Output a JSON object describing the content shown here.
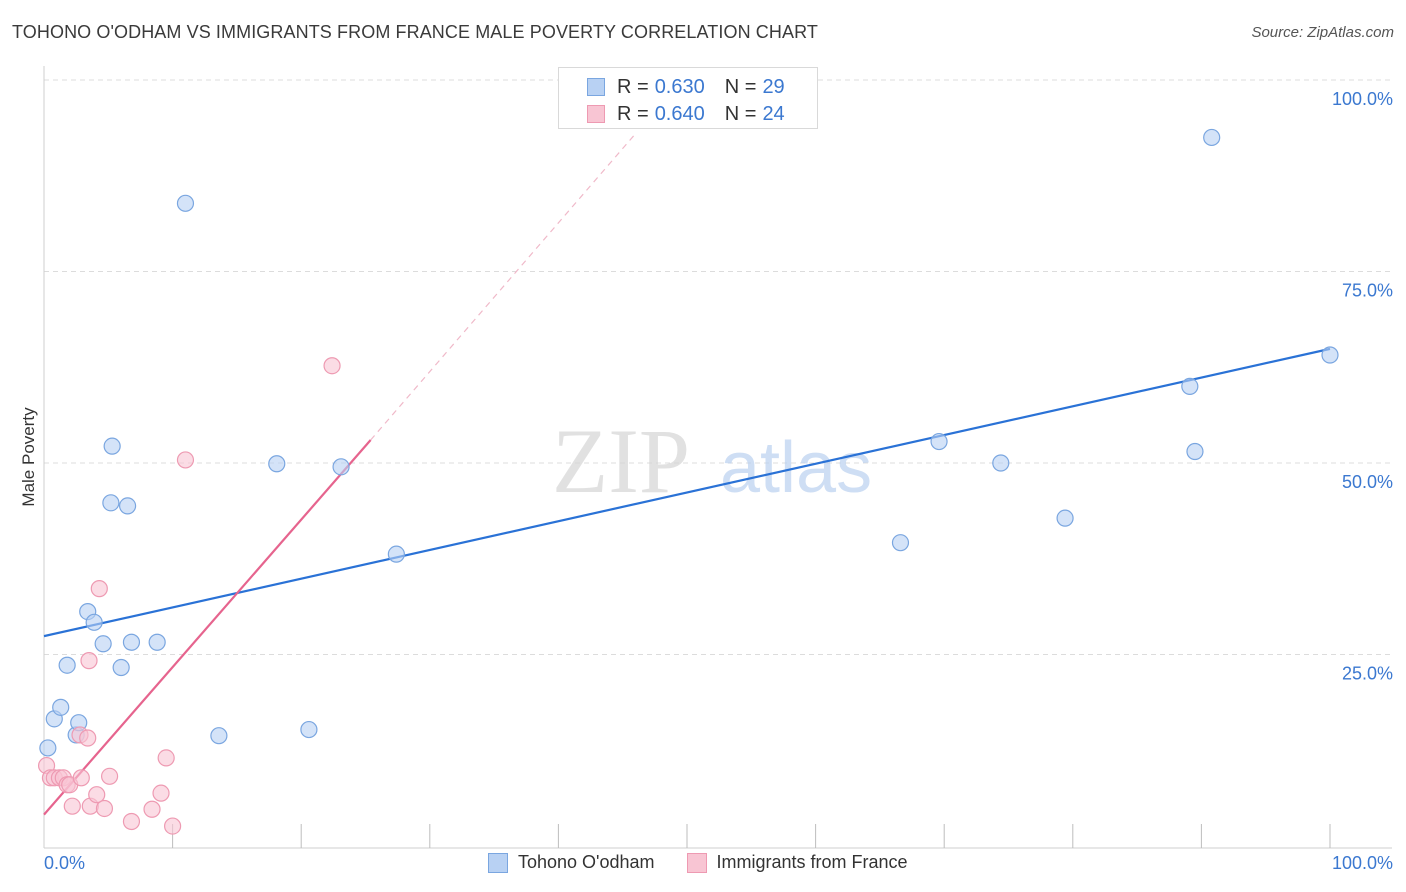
{
  "header": {
    "title": "TOHONO O'ODHAM VS IMMIGRANTS FROM FRANCE MALE POVERTY CORRELATION CHART",
    "source": "Source: ZipAtlas.com"
  },
  "legend": {
    "rows": [
      {
        "r_label": "R =",
        "r_value": "0.630",
        "n_label": "N =",
        "n_value": "29"
      },
      {
        "r_label": "R =",
        "r_value": "0.640",
        "n_label": "N =",
        "n_value": "24"
      }
    ]
  },
  "watermark": {
    "zip": "ZIP",
    "atlas": "atlas"
  },
  "colors": {
    "blue_fill": "#b8d1f3",
    "blue_stroke": "#7aa6e0",
    "blue_line": "#2a72d6",
    "pink_fill": "#f8c5d3",
    "pink_stroke": "#ee9ab2",
    "pink_line": "#e6648e",
    "grid": "#dcdcdc",
    "tick_label": "#3b78d0"
  },
  "chart_data": {
    "type": "scatter",
    "title": "TOHONO O'ODHAM VS IMMIGRANTS FROM FRANCE MALE POVERTY CORRELATION CHART",
    "xlabel": "",
    "ylabel": "Male Poverty",
    "xlim": [
      0,
      100
    ],
    "ylim": [
      0,
      100
    ],
    "x_tick_labels": [
      "0.0%",
      "100.0%"
    ],
    "y_ticks": [
      25,
      50,
      75,
      100
    ],
    "y_tick_labels": [
      "25.0%",
      "50.0%",
      "75.0%",
      "100.0%"
    ],
    "series": [
      {
        "name": "Tohono O'odham",
        "color": "blue",
        "points": [
          [
            0.3,
            12.8
          ],
          [
            0.8,
            16.6
          ],
          [
            1.3,
            18.1
          ],
          [
            1.8,
            23.6
          ],
          [
            2.5,
            14.5
          ],
          [
            2.7,
            16.1
          ],
          [
            3.4,
            30.6
          ],
          [
            3.9,
            29.2
          ],
          [
            4.6,
            26.4
          ],
          [
            5.2,
            44.8
          ],
          [
            5.3,
            52.2
          ],
          [
            6.0,
            23.3
          ],
          [
            6.5,
            44.4
          ],
          [
            6.8,
            26.6
          ],
          [
            8.8,
            26.6
          ],
          [
            11.0,
            83.9
          ],
          [
            13.6,
            14.4
          ],
          [
            18.1,
            49.9
          ],
          [
            20.6,
            15.2
          ],
          [
            23.1,
            49.5
          ],
          [
            27.4,
            38.1
          ],
          [
            66.6,
            39.6
          ],
          [
            69.6,
            52.8
          ],
          [
            74.4,
            50.0
          ],
          [
            79.4,
            42.8
          ],
          [
            89.1,
            60.0
          ],
          [
            89.5,
            51.5
          ],
          [
            90.8,
            92.5
          ],
          [
            100.0,
            64.1
          ]
        ],
        "trend": {
          "x": [
            0,
            100
          ],
          "y": [
            27.4,
            64.9
          ]
        }
      },
      {
        "name": "Immigrants from France",
        "color": "pink",
        "points": [
          [
            0.2,
            10.5
          ],
          [
            0.5,
            8.9
          ],
          [
            0.8,
            8.9
          ],
          [
            1.2,
            8.9
          ],
          [
            1.5,
            8.9
          ],
          [
            1.8,
            8.0
          ],
          [
            2.0,
            8.0
          ],
          [
            2.2,
            5.2
          ],
          [
            2.8,
            14.5
          ],
          [
            2.9,
            8.9
          ],
          [
            3.4,
            14.1
          ],
          [
            3.5,
            24.2
          ],
          [
            3.6,
            5.2
          ],
          [
            4.1,
            6.7
          ],
          [
            4.3,
            33.6
          ],
          [
            4.7,
            4.9
          ],
          [
            5.1,
            9.1
          ],
          [
            6.8,
            3.2
          ],
          [
            8.4,
            4.8
          ],
          [
            9.1,
            6.9
          ],
          [
            9.5,
            11.5
          ],
          [
            10.0,
            2.6
          ],
          [
            11.0,
            50.4
          ],
          [
            22.4,
            62.7
          ]
        ],
        "trend": {
          "x": [
            0,
            25.4
          ],
          "y": [
            4.1,
            53.0
          ]
        },
        "trend_dashed_extension": {
          "x": [
            25.4,
            46
          ],
          "y": [
            53.0,
            93
          ]
        }
      }
    ]
  },
  "bottom_legend": {
    "items": [
      "Tohono O'odham",
      "Immigrants from France"
    ]
  }
}
